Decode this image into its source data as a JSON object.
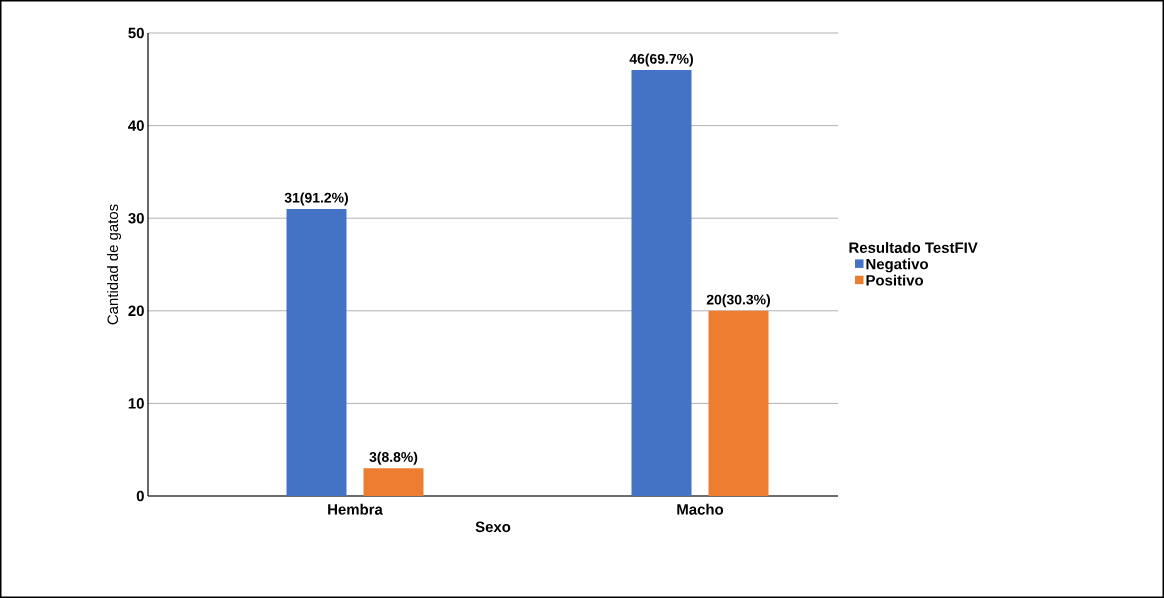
{
  "chart_data": {
    "type": "bar",
    "xlabel": "Sexo",
    "ylabel": "Cantidad de gatos",
    "legend_title": "Resultado TestFIV",
    "categories": [
      "Hembra",
      "Macho"
    ],
    "series": [
      {
        "name": "Negativo",
        "color": "#4472c4",
        "values": [
          31,
          46
        ],
        "value_labels": [
          "31(91.2%)",
          "46(69.7%)"
        ]
      },
      {
        "name": "Positivo",
        "color": "#ed7d31",
        "values": [
          3,
          20
        ],
        "value_labels": [
          "3(8.8%)",
          "20(30.3%)"
        ]
      }
    ],
    "ylim": [
      0,
      50
    ],
    "yticks": [
      0,
      10,
      20,
      30,
      40,
      50
    ],
    "grid": "y",
    "legend": "right"
  }
}
